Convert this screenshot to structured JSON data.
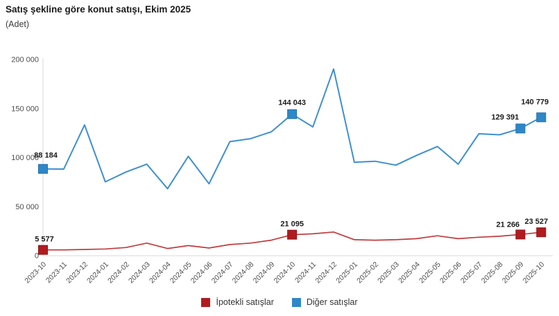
{
  "header": {
    "title": "Satış şekline göre konut satışı, Ekim 2025",
    "unit": "(Adet)"
  },
  "legend": {
    "items": [
      {
        "label": "İpotekli satışlar",
        "color": "#b11b20"
      },
      {
        "label": "Diğer satışlar",
        "color": "#2e87c8"
      }
    ]
  },
  "chart_data": {
    "type": "line",
    "title": "Satış şekline göre konut satışı, Ekim 2025",
    "xlabel": "",
    "ylabel": "(Adet)",
    "ylim": [
      0,
      200000
    ],
    "yticks": [
      0,
      50000,
      100000,
      150000,
      200000
    ],
    "ytick_labels": [
      "0",
      "50 000",
      "100 000",
      "150 000",
      "200 000"
    ],
    "grid": false,
    "legend_position": "bottom",
    "categories": [
      "2023-10",
      "2023-11",
      "2023-12",
      "2024-01",
      "2024-02",
      "2024-03",
      "2024-04",
      "2024-05",
      "2024-06",
      "2024-07",
      "2024-08",
      "2024-09",
      "2024-10",
      "2024-11",
      "2024-12",
      "2025-01",
      "2025-02",
      "2025-03",
      "2025-04",
      "2025-05",
      "2025-06",
      "2025-07",
      "2025-08",
      "2025-09",
      "2025-10"
    ],
    "series": [
      {
        "name": "İpotekli satışlar",
        "line_color": "#c23a3c",
        "marker_color": "#b11b20",
        "marker_border": "#8e1418",
        "values": [
          5577,
          5600,
          6000,
          6500,
          8000,
          12500,
          7000,
          10000,
          7500,
          11000,
          12500,
          15500,
          21095,
          22000,
          23800,
          16000,
          15500,
          16000,
          17000,
          20000,
          17000,
          18500,
          19500,
          21266,
          23527
        ],
        "point_labels": [
          {
            "i": 0,
            "text": "5 577",
            "dx": 2,
            "dy": -12
          },
          {
            "i": 12,
            "text": "21 095",
            "dx": 0,
            "dy": -12
          },
          {
            "i": 23,
            "text": "21 266",
            "dx": -18,
            "dy": -11
          },
          {
            "i": 24,
            "text": "23 527",
            "dx": -7,
            "dy": -12
          }
        ]
      },
      {
        "name": "Diğer satışlar",
        "line_color": "#3d8fd1",
        "marker_color": "#2e87c8",
        "marker_border": "#2371ad",
        "values": [
          88184,
          88000,
          133000,
          75000,
          85000,
          93000,
          68000,
          101000,
          73000,
          116000,
          119000,
          126000,
          144043,
          131000,
          190000,
          95000,
          96000,
          92000,
          102000,
          111000,
          93000,
          124000,
          123000,
          129391,
          140779
        ],
        "point_labels": [
          {
            "i": 0,
            "text": "88 184",
            "dx": 4,
            "dy": -16
          },
          {
            "i": 12,
            "text": "144 043",
            "dx": 0,
            "dy": -13
          },
          {
            "i": 23,
            "text": "129 391",
            "dx": -22,
            "dy": -13
          },
          {
            "i": 24,
            "text": "140 779",
            "dx": -9,
            "dy": -19
          }
        ]
      }
    ]
  },
  "colors": {
    "axis_line": "#d9d9d9",
    "tick_text": "#4d4d4d",
    "data_label_text": "#1a1a1a"
  }
}
